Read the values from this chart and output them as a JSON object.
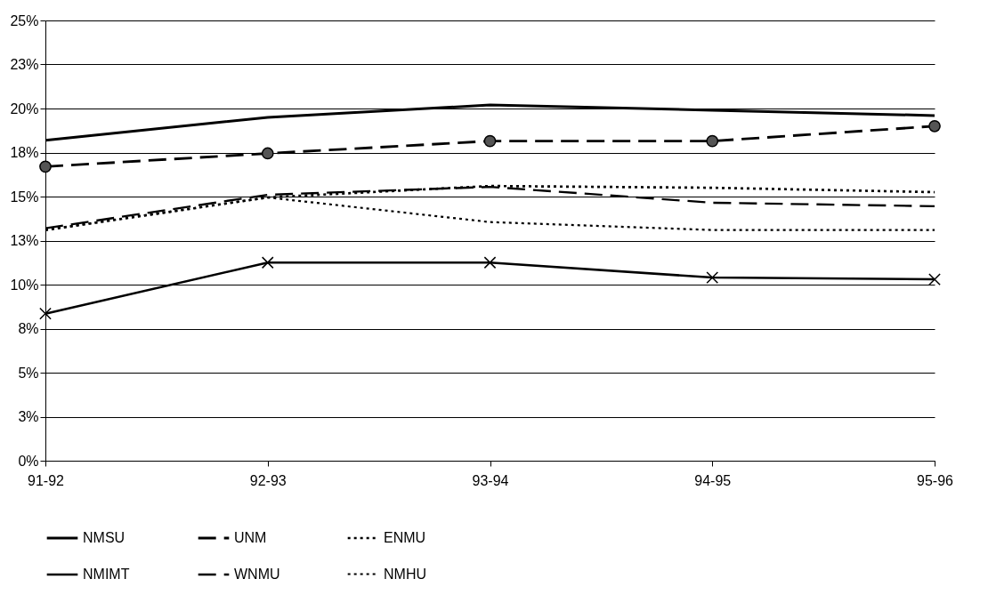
{
  "chart_data": {
    "type": "line",
    "categories": [
      "91-92",
      "92-93",
      "93-94",
      "94-95",
      "95-96"
    ],
    "ylim": [
      0,
      25
    ],
    "yticks": [
      {
        "value": 0,
        "label": "0%"
      },
      {
        "value": 2.5,
        "label": "3%"
      },
      {
        "value": 5,
        "label": "5%"
      },
      {
        "value": 7.5,
        "label": "8%"
      },
      {
        "value": 10,
        "label": "10%"
      },
      {
        "value": 12.5,
        "label": "13%"
      },
      {
        "value": 15,
        "label": "15%"
      },
      {
        "value": 17.5,
        "label": "18%"
      },
      {
        "value": 20,
        "label": "20%"
      },
      {
        "value": 22.5,
        "label": "23%"
      },
      {
        "value": 25,
        "label": "25%"
      }
    ],
    "grid": "y",
    "legend": "bottom",
    "series": [
      {
        "name": "NMSU",
        "color": "#000000",
        "line_style": "solid",
        "marker": "none",
        "values": [
          18.2,
          19.5,
          20.2,
          19.9,
          19.6
        ]
      },
      {
        "name": "UNM",
        "color": "#000000",
        "line_style": "dashed",
        "marker": "circle",
        "values": [
          16.7,
          17.45,
          18.15,
          18.15,
          19.0
        ]
      },
      {
        "name": "ENMU",
        "color": "#000000",
        "line_style": "dotted",
        "marker": "none",
        "values": [
          13.1,
          14.95,
          15.6,
          15.5,
          15.25
        ]
      },
      {
        "name": "NMIMT",
        "color": "#000000",
        "line_style": "solid",
        "marker": "cross",
        "values": [
          8.35,
          11.25,
          11.25,
          10.4,
          10.3
        ]
      },
      {
        "name": "WNMU",
        "color": "#000000",
        "line_style": "dashed",
        "marker": "none",
        "values": [
          13.2,
          15.1,
          15.55,
          14.65,
          14.45
        ]
      },
      {
        "name": "NMHU",
        "color": "#000000",
        "line_style": "dotted",
        "marker": "none",
        "values": [
          13.1,
          14.95,
          13.55,
          13.1,
          13.1
        ]
      }
    ]
  }
}
